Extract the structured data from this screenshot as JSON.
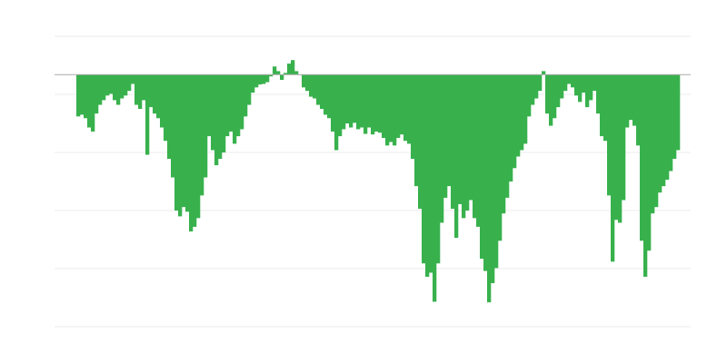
{
  "chart_data": {
    "type": "bar",
    "title": "",
    "xlabel": "",
    "ylabel": "",
    "ylim": [
      -4.34,
      0.66
    ],
    "grid": true,
    "gridlines": [
      0.66,
      -0.34,
      -1.34,
      -2.34,
      -3.34,
      -4.34
    ],
    "bar_color": "#38b14d",
    "grid_color": "#ebebeb",
    "baseline_color": "#aaaaaa",
    "values": [
      -0.72,
      -0.69,
      -0.75,
      -0.91,
      -0.98,
      -0.67,
      -0.52,
      -0.44,
      -0.36,
      -0.33,
      -0.44,
      -0.52,
      -0.41,
      -0.36,
      -0.28,
      -0.16,
      -0.52,
      -0.59,
      -0.44,
      -1.38,
      -0.56,
      -0.67,
      -0.75,
      -0.91,
      -1.14,
      -1.45,
      -1.77,
      -2.34,
      -2.44,
      -2.28,
      -2.36,
      -2.7,
      -2.62,
      -2.47,
      -2.08,
      -1.77,
      -1.06,
      -1.3,
      -1.56,
      -1.45,
      -1.34,
      -1.06,
      -0.98,
      -1.19,
      -1.06,
      -0.94,
      -0.72,
      -0.52,
      -0.31,
      -0.22,
      -0.17,
      -0.16,
      -0.13,
      -0.03,
      0.14,
      0.06,
      -0.09,
      0.03,
      0.19,
      0.25,
      0.06,
      0,
      -0.22,
      -0.28,
      -0.38,
      -0.41,
      -0.52,
      -0.59,
      -0.69,
      -0.75,
      -0.98,
      -1.3,
      -1.06,
      -0.94,
      -0.84,
      -0.91,
      -0.83,
      -0.94,
      -0.91,
      -1.02,
      -0.91,
      -1.03,
      -0.98,
      -1.0,
      -1.09,
      -1.22,
      -1.16,
      -1.22,
      -1.09,
      -1.03,
      -1.14,
      -1.19,
      -1.45,
      -1.92,
      -2.31,
      -3.25,
      -3.48,
      -3.41,
      -3.91,
      -3.25,
      -2.55,
      -2.12,
      -1.92,
      -2.31,
      -2.81,
      -2.23,
      -2.47,
      -2.34,
      -2.16,
      -2.47,
      -2.62,
      -3.17,
      -3.38,
      -3.92,
      -3.59,
      -3.33,
      -2.86,
      -2.39,
      -2.12,
      -1.84,
      -1.61,
      -1.41,
      -1.3,
      -1.19,
      -0.72,
      -0.52,
      -0.41,
      -0.28,
      0.06,
      -0.67,
      -0.88,
      -0.75,
      -0.56,
      -0.41,
      -0.28,
      -0.16,
      -0.22,
      -0.36,
      -0.47,
      -0.31,
      -0.56,
      -0.44,
      -0.28,
      -0.67,
      -1.06,
      -1.14,
      -2.08,
      -3.22,
      -2.5,
      -2.55,
      -2.16,
      -0.91,
      -0.78,
      -0.88,
      -1.22,
      -2.86,
      -3.48,
      -3.03,
      -2.39,
      -2.28,
      -2.03,
      -1.92,
      -1.81,
      -1.66,
      -1.45,
      -1.3
    ]
  }
}
